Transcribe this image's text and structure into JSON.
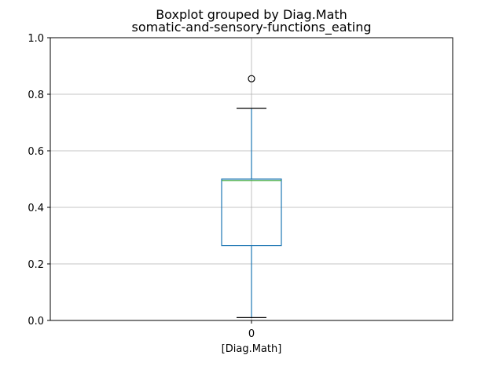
{
  "chart_data": {
    "type": "boxplot",
    "suptitle": "Boxplot grouped by Diag.Math",
    "title": "somatic-and-sensory-functions_eating",
    "xlabel": "[Diag.Math]",
    "ylabel": "",
    "categories": [
      "0"
    ],
    "ylim": [
      0,
      1
    ],
    "yticks": [
      "0.0",
      "0.2",
      "0.4",
      "0.6",
      "0.8",
      "1.0"
    ],
    "grid": true,
    "boxes": [
      {
        "category": "0",
        "whisker_low": 0.01,
        "q1": 0.265,
        "median": 0.495,
        "q3": 0.5,
        "whisker_high": 0.75,
        "outliers": [
          0.855
        ]
      }
    ],
    "colors": {
      "box": "#1f77b4",
      "median": "#2ca02c",
      "whisker_cap": "#000000",
      "grid": "#b0b0b0"
    }
  }
}
